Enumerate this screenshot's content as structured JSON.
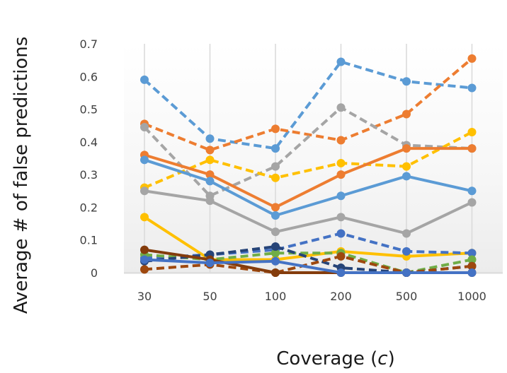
{
  "chart_data": {
    "type": "line",
    "title": "",
    "xlabel": "Coverage",
    "xlabel_var": "c",
    "ylabel": "Average # of false predictions",
    "categories": [
      "30",
      "50",
      "100",
      "200",
      "500",
      "1000"
    ],
    "ylim": [
      0,
      0.7
    ],
    "yticks": [
      "0",
      "0.1",
      "0.2",
      "0.3",
      "0.4",
      "0.5",
      "0.6",
      "0.7"
    ],
    "grid": "vertical",
    "legend": "none",
    "series": [
      {
        "color": "#5b9bd5",
        "dashed": true,
        "values": [
          0.59,
          0.41,
          0.38,
          0.645,
          0.585,
          0.565
        ]
      },
      {
        "color": "#ed7d31",
        "dashed": true,
        "values": [
          0.455,
          0.375,
          0.44,
          0.405,
          0.485,
          0.655
        ]
      },
      {
        "color": "#a5a5a5",
        "dashed": true,
        "values": [
          0.445,
          0.235,
          0.325,
          0.505,
          0.39,
          0.38
        ]
      },
      {
        "color": "#ffc000",
        "dashed": true,
        "values": [
          0.26,
          0.345,
          0.29,
          0.335,
          0.325,
          0.43
        ]
      },
      {
        "color": "#ed7d31",
        "dashed": false,
        "values": [
          0.36,
          0.3,
          0.2,
          0.3,
          0.38,
          0.38
        ]
      },
      {
        "color": "#5b9bd5",
        "dashed": false,
        "values": [
          0.345,
          0.28,
          0.175,
          0.235,
          0.295,
          0.25
        ]
      },
      {
        "color": "#a5a5a5",
        "dashed": false,
        "values": [
          0.25,
          0.22,
          0.125,
          0.17,
          0.12,
          0.215
        ]
      },
      {
        "color": "#ffc000",
        "dashed": false,
        "values": [
          0.17,
          0.04,
          0.04,
          0.065,
          0.05,
          0.06
        ]
      },
      {
        "color": "#4472c4",
        "dashed": true,
        "values": [
          0.045,
          0.055,
          0.07,
          0.12,
          0.065,
          0.06
        ]
      },
      {
        "color": "#70ad47",
        "dashed": true,
        "values": [
          0.055,
          0.04,
          0.06,
          0.06,
          0.0,
          0.04
        ]
      },
      {
        "color": "#264478",
        "dashed": true,
        "values": [
          0.035,
          0.055,
          0.08,
          0.015,
          0.0,
          0.02
        ]
      },
      {
        "color": "#9e480e",
        "dashed": true,
        "values": [
          0.01,
          0.025,
          0.0,
          0.05,
          0.0,
          0.02
        ]
      },
      {
        "color": "#843c0c",
        "dashed": false,
        "values": [
          0.07,
          0.04,
          0.0,
          0.0,
          0.0,
          0.0
        ]
      },
      {
        "color": "#4472c4",
        "dashed": false,
        "values": [
          0.04,
          0.03,
          0.035,
          0.0,
          0.0,
          0.0
        ]
      }
    ]
  }
}
